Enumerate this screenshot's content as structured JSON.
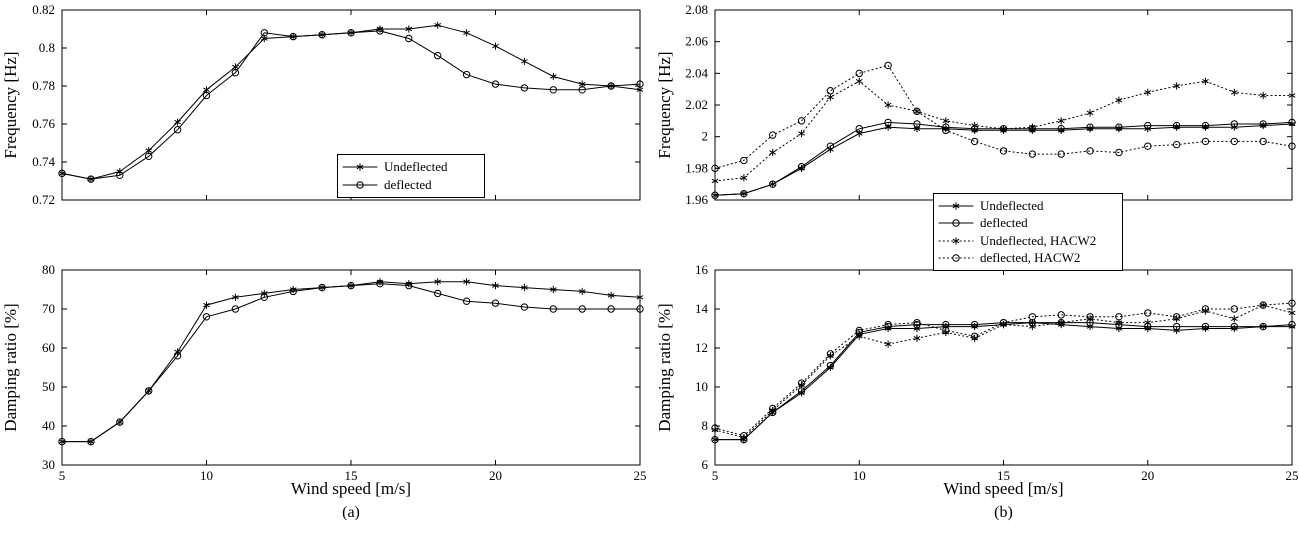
{
  "figure": {
    "caption_a": "(a)",
    "caption_b": "(b)",
    "xlabel": "Wind speed [m/s]",
    "colors": {
      "line": "#000000",
      "background": "#ffffff"
    }
  },
  "chart_data": [
    {
      "id": "frequency-a",
      "type": "line",
      "title": "",
      "ylabel": "Frequency [Hz]",
      "xlabel": "Wind speed [m/s]",
      "xlim": [
        5,
        25
      ],
      "ylim": [
        0.72,
        0.82
      ],
      "xticks": [
        5,
        10,
        15,
        20,
        25
      ],
      "xtick_labels": [
        "5",
        "10",
        "15",
        "20",
        "25"
      ],
      "yticks": [
        0.72,
        0.74,
        0.76,
        0.78,
        0.8,
        0.82
      ],
      "ytick_labels": [
        "0.72",
        "0.74",
        "0.76",
        "0.78",
        "0.8",
        "0.82"
      ],
      "grid": false,
      "legend_position": "inside-lower-center",
      "x": [
        5,
        6,
        7,
        8,
        9,
        10,
        11,
        12,
        13,
        14,
        15,
        16,
        17,
        18,
        19,
        20,
        21,
        22,
        23,
        24,
        25
      ],
      "series": [
        {
          "name": "Undeflected",
          "marker": "star",
          "line": "solid",
          "values": [
            0.734,
            0.731,
            0.735,
            0.746,
            0.761,
            0.778,
            0.79,
            0.805,
            0.806,
            0.807,
            0.808,
            0.81,
            0.81,
            0.812,
            0.808,
            0.801,
            0.793,
            0.785,
            0.781,
            0.78,
            0.778
          ]
        },
        {
          "name": "deflected",
          "marker": "circle",
          "line": "solid",
          "values": [
            0.734,
            0.731,
            0.733,
            0.743,
            0.757,
            0.775,
            0.787,
            0.808,
            0.806,
            0.807,
            0.808,
            0.809,
            0.805,
            0.796,
            0.786,
            0.781,
            0.779,
            0.778,
            0.778,
            0.78,
            0.781
          ]
        }
      ]
    },
    {
      "id": "damping-a",
      "type": "line",
      "title": "",
      "ylabel": "Damping ratio [%]",
      "xlabel": "Wind speed [m/s]",
      "xlim": [
        5,
        25
      ],
      "ylim": [
        30,
        80
      ],
      "xticks": [
        5,
        10,
        15,
        20,
        25
      ],
      "xtick_labels": [
        "5",
        "10",
        "15",
        "20",
        "25"
      ],
      "yticks": [
        30,
        40,
        50,
        60,
        70,
        80
      ],
      "ytick_labels": [
        "30",
        "40",
        "50",
        "60",
        "70",
        "80"
      ],
      "grid": false,
      "legend_position": "none",
      "x": [
        5,
        6,
        7,
        8,
        9,
        10,
        11,
        12,
        13,
        14,
        15,
        16,
        17,
        18,
        19,
        20,
        21,
        22,
        23,
        24,
        25
      ],
      "series": [
        {
          "name": "Undeflected",
          "marker": "star",
          "line": "solid",
          "values": [
            36,
            36,
            41,
            49,
            59,
            71,
            73,
            74,
            75,
            75.5,
            76,
            77,
            76.5,
            77,
            77,
            76,
            75.5,
            75,
            74.5,
            73.5,
            73
          ]
        },
        {
          "name": "deflected",
          "marker": "circle",
          "line": "solid",
          "values": [
            36,
            36,
            41,
            49,
            58,
            68,
            70,
            73,
            74.5,
            75.5,
            76,
            76.5,
            76,
            74,
            72,
            71.5,
            70.5,
            70,
            70,
            70,
            70
          ]
        }
      ]
    },
    {
      "id": "frequency-b",
      "type": "line",
      "title": "",
      "ylabel": "Frequency [Hz]",
      "xlabel": "Wind speed [m/s]",
      "xlim": [
        5,
        25
      ],
      "ylim": [
        1.96,
        2.08
      ],
      "xticks": [
        5,
        10,
        15,
        20,
        25
      ],
      "xtick_labels": [
        "5",
        "10",
        "15",
        "20",
        "25"
      ],
      "yticks": [
        1.96,
        1.98,
        2,
        2.02,
        2.04,
        2.06,
        2.08
      ],
      "ytick_labels": [
        "1.96",
        "1.98",
        "2",
        "2.02",
        "2.04",
        "2.06",
        "2.08"
      ],
      "grid": false,
      "legend_position": "below-left",
      "x": [
        5,
        6,
        7,
        8,
        9,
        10,
        11,
        12,
        13,
        14,
        15,
        16,
        17,
        18,
        19,
        20,
        21,
        22,
        23,
        24,
        25
      ],
      "series": [
        {
          "name": "Undeflected",
          "marker": "star",
          "line": "solid",
          "values": [
            1.963,
            1.964,
            1.97,
            1.98,
            1.992,
            2.002,
            2.006,
            2.005,
            2.005,
            2.004,
            2.004,
            2.004,
            2.004,
            2.005,
            2.005,
            2.005,
            2.006,
            2.006,
            2.006,
            2.007,
            2.008
          ]
        },
        {
          "name": "deflected",
          "marker": "circle",
          "line": "solid",
          "values": [
            1.963,
            1.964,
            1.97,
            1.981,
            1.994,
            2.005,
            2.009,
            2.008,
            2.006,
            2.005,
            2.005,
            2.005,
            2.005,
            2.006,
            2.006,
            2.007,
            2.007,
            2.007,
            2.008,
            2.008,
            2.009
          ]
        },
        {
          "name": "Undeflected, HACW2",
          "marker": "star",
          "line": "dotted",
          "values": [
            1.972,
            1.974,
            1.99,
            2.002,
            2.025,
            2.035,
            2.02,
            2.016,
            2.01,
            2.007,
            2.005,
            2.006,
            2.01,
            2.015,
            2.023,
            2.028,
            2.032,
            2.035,
            2.028,
            2.026,
            2.026
          ]
        },
        {
          "name": "deflected, HACW2",
          "marker": "circle",
          "line": "dotted",
          "values": [
            1.98,
            1.985,
            2.001,
            2.01,
            2.029,
            2.04,
            2.045,
            2.016,
            2.004,
            1.997,
            1.991,
            1.989,
            1.989,
            1.991,
            1.99,
            1.994,
            1.995,
            1.997,
            1.997,
            1.997,
            1.994
          ]
        }
      ]
    },
    {
      "id": "damping-b",
      "type": "line",
      "title": "",
      "ylabel": "Damping ratio [%]",
      "xlabel": "Wind speed [m/s]",
      "xlim": [
        5,
        25
      ],
      "ylim": [
        6,
        16
      ],
      "xticks": [
        5,
        10,
        15,
        20,
        25
      ],
      "xtick_labels": [
        "5",
        "10",
        "15",
        "20",
        "25"
      ],
      "yticks": [
        6,
        8,
        10,
        12,
        14,
        16
      ],
      "ytick_labels": [
        "6",
        "8",
        "10",
        "12",
        "14",
        "16"
      ],
      "grid": false,
      "legend_position": "none",
      "x": [
        5,
        6,
        7,
        8,
        9,
        10,
        11,
        12,
        13,
        14,
        15,
        16,
        17,
        18,
        19,
        20,
        21,
        22,
        23,
        24,
        25
      ],
      "series": [
        {
          "name": "Undeflected",
          "marker": "star",
          "line": "solid",
          "values": [
            7.3,
            7.3,
            8.7,
            9.7,
            11.0,
            12.7,
            13.0,
            13.0,
            13.1,
            13.1,
            13.2,
            13.3,
            13.2,
            13.1,
            13.0,
            13.0,
            12.9,
            13.0,
            13.0,
            13.1,
            13.1
          ]
        },
        {
          "name": "deflected",
          "marker": "circle",
          "line": "solid",
          "values": [
            7.3,
            7.3,
            8.7,
            9.8,
            11.1,
            12.8,
            13.1,
            13.2,
            13.2,
            13.2,
            13.3,
            13.3,
            13.3,
            13.3,
            13.2,
            13.1,
            13.1,
            13.1,
            13.1,
            13.1,
            13.2
          ]
        },
        {
          "name": "Undeflected, HACW2",
          "marker": "star",
          "line": "dotted",
          "values": [
            7.8,
            7.4,
            8.8,
            10.1,
            11.6,
            12.6,
            12.2,
            12.5,
            12.8,
            12.5,
            13.2,
            13.1,
            13.3,
            13.5,
            13.3,
            13.3,
            13.5,
            13.9,
            13.5,
            14.2,
            13.8
          ]
        },
        {
          "name": "deflected, HACW2",
          "marker": "circle",
          "line": "dotted",
          "values": [
            7.9,
            7.5,
            8.9,
            10.2,
            11.7,
            12.9,
            13.2,
            13.3,
            12.9,
            12.6,
            13.3,
            13.6,
            13.7,
            13.6,
            13.6,
            13.8,
            13.6,
            14.0,
            14.0,
            14.2,
            14.3
          ]
        }
      ]
    }
  ]
}
